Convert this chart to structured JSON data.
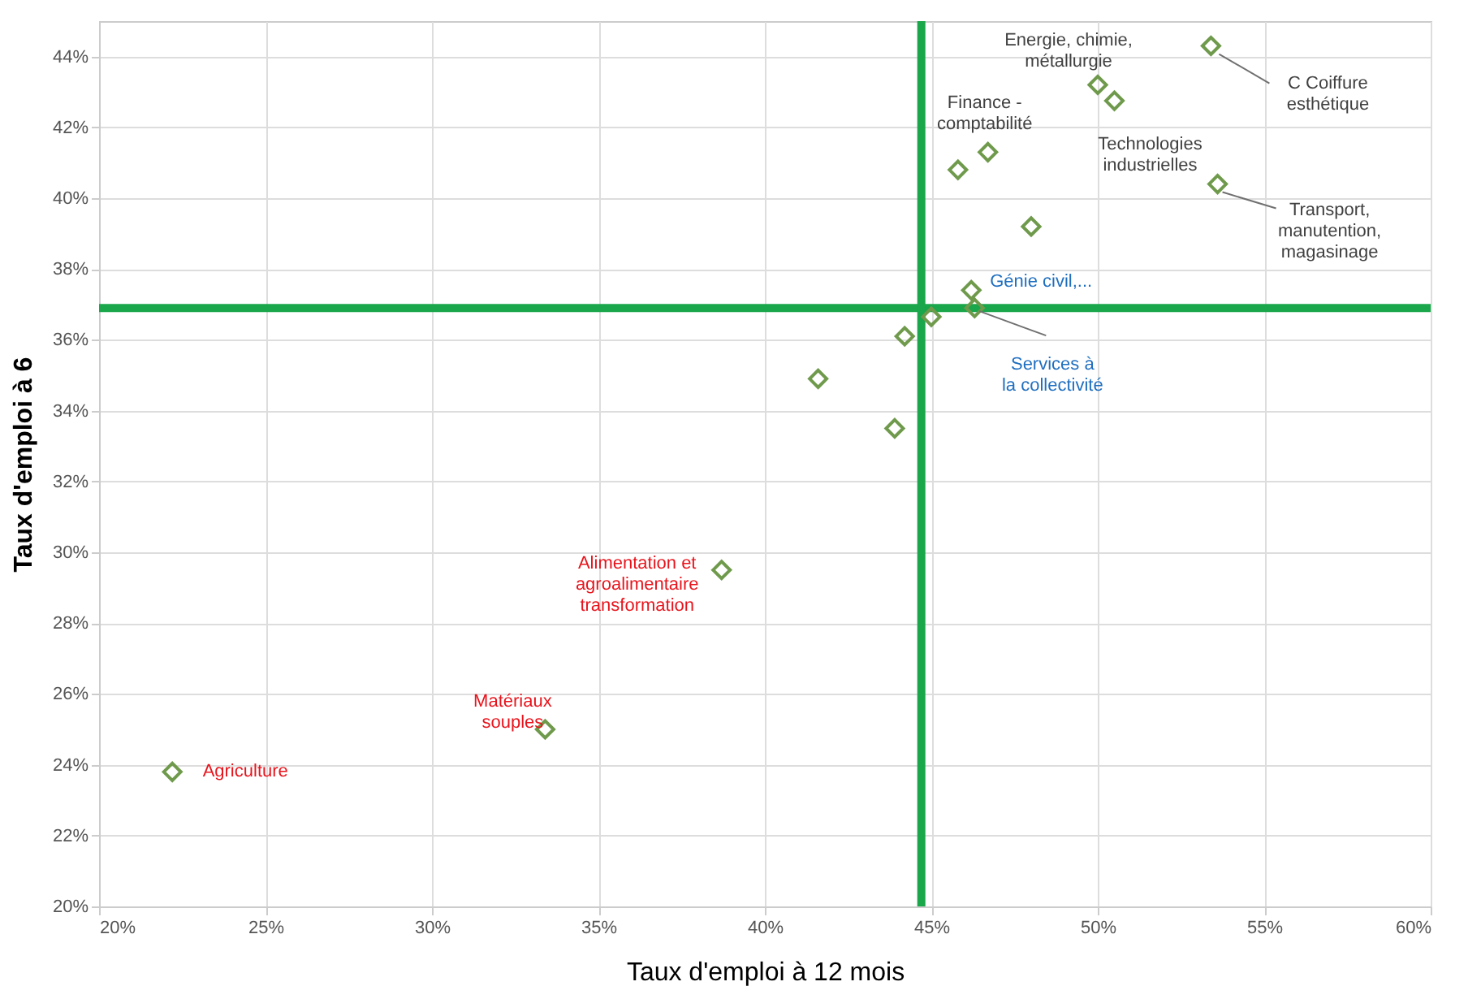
{
  "chart_data": {
    "type": "scatter",
    "xlabel": "Taux d'emploi à 12 mois",
    "ylabel": "Taux d'emploi à 6",
    "x": [
      22.2,
      33.4,
      38.7,
      41.6,
      43.9,
      44.2,
      45.0,
      46.2,
      46.3,
      48.0,
      45.8,
      46.7,
      50.0,
      50.5,
      53.4,
      53.6
    ],
    "series": [
      {
        "color": "#6f9a4c",
        "values": [
          23.8,
          25.0,
          29.5,
          34.9,
          33.5,
          36.1,
          36.65,
          37.4,
          36.9,
          39.2,
          40.8,
          41.3,
          43.2,
          42.75,
          44.3,
          40.4
        ]
      }
    ],
    "marker": "diamond",
    "xlim": [
      20,
      60
    ],
    "ylim": [
      20,
      45
    ],
    "xticks": [
      {
        "value": 20,
        "label": "20%"
      },
      {
        "value": 25,
        "label": "25%"
      },
      {
        "value": 30,
        "label": "30%"
      },
      {
        "value": 35,
        "label": "35%"
      },
      {
        "value": 40,
        "label": "40%"
      },
      {
        "value": 45,
        "label": "45%"
      },
      {
        "value": 50,
        "label": "50%"
      },
      {
        "value": 55,
        "label": "55%"
      },
      {
        "value": 60,
        "label": "60%"
      }
    ],
    "yticks": [
      {
        "value": 20,
        "label": "20%"
      },
      {
        "value": 22,
        "label": "22%"
      },
      {
        "value": 24,
        "label": "24%"
      },
      {
        "value": 26,
        "label": "26%"
      },
      {
        "value": 28,
        "label": "28%"
      },
      {
        "value": 30,
        "label": "30%"
      },
      {
        "value": 32,
        "label": "32%"
      },
      {
        "value": 34,
        "label": "34%"
      },
      {
        "value": 36,
        "label": "36%"
      },
      {
        "value": 38,
        "label": "38%"
      },
      {
        "value": 40,
        "label": "40%"
      },
      {
        "value": 42,
        "label": "42%"
      },
      {
        "value": 44,
        "label": "44%"
      }
    ],
    "grid": true,
    "ref_lines": [
      {
        "axis": "x",
        "value": 44.7,
        "color": "#1aa64a"
      },
      {
        "axis": "y",
        "value": 36.9,
        "color": "#1aa64a"
      }
    ],
    "annotations": [
      {
        "text": "Energie, chimie,\nmétallurgie",
        "x": 50.0,
        "y": 43.2
      },
      {
        "text": "Technologies\nindustrielles",
        "x": 50.5,
        "y": 42.75
      },
      {
        "text": "C Coiffure\nesthétique",
        "x": 53.4,
        "y": 44.3
      },
      {
        "text": "Finance -\ncomptabilité",
        "x": 46.7,
        "y": 41.3
      },
      {
        "text": "Transport,\nmanutention,\nmagasinage",
        "x": 53.6,
        "y": 40.4
      },
      {
        "text": "Génie civil,...",
        "x": 46.2,
        "y": 37.4
      },
      {
        "text": "Services à\nla collectivité",
        "x": 46.3,
        "y": 36.9
      },
      {
        "text": "Alimentation et\nagroalimentaire\ntransformation",
        "x": 38.7,
        "y": 29.5
      },
      {
        "text": "Matériaux\nsouples",
        "x": 33.4,
        "y": 25.0
      },
      {
        "text": "Agriculture",
        "x": 22.2,
        "y": 23.8
      }
    ]
  }
}
